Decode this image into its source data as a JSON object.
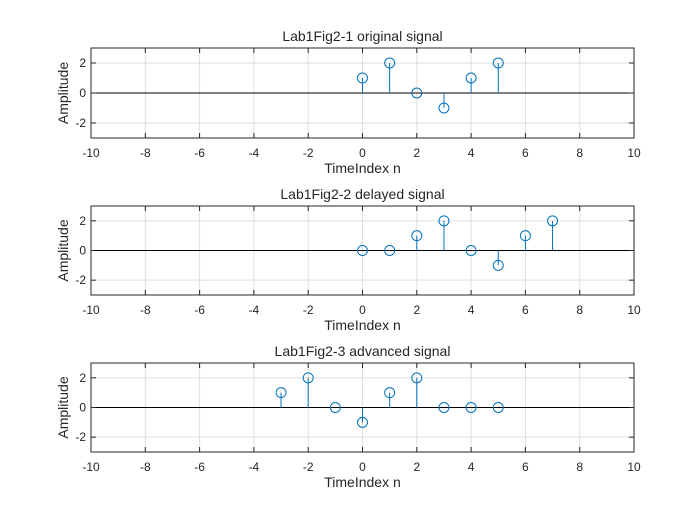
{
  "chart_data": [
    {
      "type": "stem",
      "title": "Lab1Fig2-1 original signal",
      "xlabel": "TimeIndex n",
      "ylabel": "Amplitude",
      "xlim": [
        -10,
        10
      ],
      "ylim": [
        -3,
        3
      ],
      "xticks": [
        -10,
        -8,
        -6,
        -4,
        -2,
        0,
        2,
        4,
        6,
        8,
        10
      ],
      "yticks": [
        -2,
        0,
        2
      ],
      "grid": true,
      "x": [
        0,
        1,
        2,
        3,
        4,
        5
      ],
      "y": [
        1,
        2,
        0,
        -1,
        1,
        2
      ]
    },
    {
      "type": "stem",
      "title": "Lab1Fig2-2 delayed signal",
      "xlabel": "TimeIndex n",
      "ylabel": "Amplitude",
      "xlim": [
        -10,
        10
      ],
      "ylim": [
        -3,
        3
      ],
      "xticks": [
        -10,
        -8,
        -6,
        -4,
        -2,
        0,
        2,
        4,
        6,
        8,
        10
      ],
      "yticks": [
        -2,
        0,
        2
      ],
      "grid": true,
      "x": [
        0,
        1,
        2,
        3,
        4,
        5,
        6,
        7
      ],
      "y": [
        0,
        0,
        1,
        2,
        0,
        -1,
        1,
        2
      ]
    },
    {
      "type": "stem",
      "title": "Lab1Fig2-3 advanced signal",
      "xlabel": "TimeIndex n",
      "ylabel": "Amplitude",
      "xlim": [
        -10,
        10
      ],
      "ylim": [
        -3,
        3
      ],
      "xticks": [
        -10,
        -8,
        -6,
        -4,
        -2,
        0,
        2,
        4,
        6,
        8,
        10
      ],
      "yticks": [
        -2,
        0,
        2
      ],
      "grid": true,
      "x": [
        -3,
        -2,
        -1,
        0,
        1,
        2,
        3,
        4,
        5
      ],
      "y": [
        1,
        2,
        0,
        -1,
        1,
        2,
        0,
        0,
        0
      ]
    }
  ],
  "colors": {
    "stem": "#0072BD",
    "axis": "#262626",
    "grid": "#dfdfdf",
    "baseline": "#000000"
  }
}
